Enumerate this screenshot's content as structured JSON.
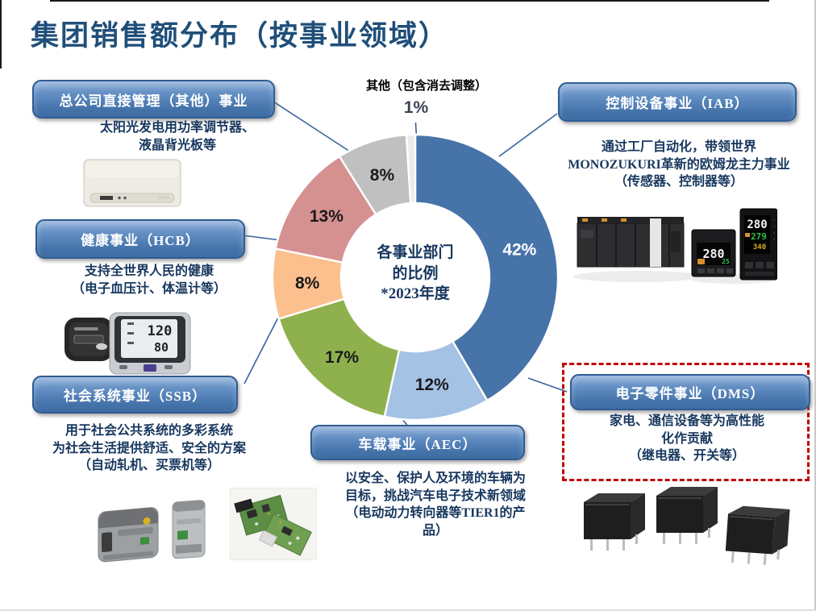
{
  "title": "集团销售额分布（按事业领域）",
  "chart_data": {
    "type": "pie",
    "subtype": "donut",
    "center_text": "各事业部门\n的比例\n*2023年度",
    "unit": "%",
    "legend_position": "callout-boxes",
    "other_callout": {
      "label": "其他（包含消去调整）",
      "value_label": "1%"
    },
    "segments": [
      {
        "name": "控制设备事业（IAB）",
        "value": 42,
        "label": "42%",
        "color": "#4673A8",
        "label_color": "#FFFFFF"
      },
      {
        "name": "电子零件事业（DMS）",
        "value": 12,
        "label": "12%",
        "color": "#A4C2E3",
        "label_color": "#1A1A1A"
      },
      {
        "name": "车载事业（AEC）",
        "value": 17,
        "label": "17%",
        "color": "#8FB14D",
        "label_color": "#1A1A1A"
      },
      {
        "name": "社会系统事业（SSB）",
        "value": 8,
        "label": "8%",
        "color": "#FBC08D",
        "label_color": "#1A1A1A"
      },
      {
        "name": "健康事业（HCB）",
        "value": 13,
        "label": "13%",
        "color": "#D59190",
        "label_color": "#1A1A1A"
      },
      {
        "name": "总公司直接管理（其他）事业",
        "value": 8,
        "label": "8%",
        "color": "#C1C0C0",
        "label_color": "#1A1A1A"
      },
      {
        "name": "其他（包含消去调整）",
        "value": 1,
        "label": "1%",
        "color": "#EBEBEB",
        "label_color": "#3C4254",
        "label_outside": true
      }
    ]
  },
  "businesses": {
    "hq": {
      "box_label": "总公司直接管理（其他）事业",
      "description": "太阳光发电用功率调节器、\n液晶背光板等",
      "image": "solar-power-conditioner-photo"
    },
    "iab": {
      "box_label": "控制设备事业（IAB）",
      "description": "通过工厂自动化，带领世界\nMONOZUKURI革新的欧姆龙主力事业\n（传感器、控制器等）",
      "image": "plc-and-temperature-controllers-photo"
    },
    "hcb": {
      "box_label": "健康事业（HCB）",
      "description": "支持全世界人民的健康\n（电子血压计、体温计等）",
      "image": "blood-pressure-monitor-photo"
    },
    "ssb": {
      "box_label": "社会系统事业（SSB）",
      "description": "用于社会公共系统的多彩系统\n为社会生活提供舒适、安全的方案\n（自动轧机、买票机等）",
      "image": "ticket-gate-machines-photo"
    },
    "aec": {
      "box_label": "车载事业（AEC）",
      "description": "以安全、保护人及环境的车辆为\n目标，挑战汽车电子技术新领域\n（电动动力转向器等TIER1的产\n品）",
      "image": "automotive-circuit-boards-photo"
    },
    "dms": {
      "box_label": "电子零件事业（DMS）",
      "description": "家电、通信设备等为高性能\n化作贡献\n（继电器、开关等）",
      "image": "relays-photo",
      "highlight_color": "#C00000"
    }
  }
}
